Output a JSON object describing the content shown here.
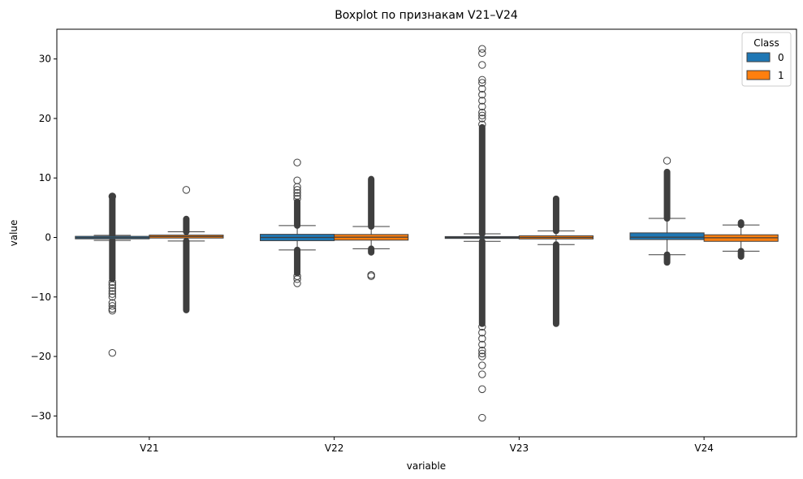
{
  "chart_data": {
    "type": "box",
    "title": "Boxplot по признакам V21–V24",
    "xlabel": "variable",
    "ylabel": "value",
    "ylim": [
      -33.5,
      35
    ],
    "yticks": [
      -30,
      -20,
      -10,
      0,
      10,
      20,
      30
    ],
    "yticklabels": [
      "−30",
      "−20",
      "−10",
      "0",
      "10",
      "20",
      "30"
    ],
    "categories": [
      "V21",
      "V22",
      "V23",
      "V24"
    ],
    "legend": {
      "title": "Class",
      "position": "top-right"
    },
    "grid": false,
    "series": [
      {
        "name": "0",
        "color": "#1f77b4",
        "boxes": [
          {
            "q1": -0.23,
            "median": -0.03,
            "q3": 0.19,
            "whisker_low": -0.5,
            "whisker_high": 0.35,
            "outliers_dense": [
              [
                -7.0,
                -0.5
              ],
              [
                0.35,
                6.9
              ]
            ],
            "outliers": [
              -7.5,
              -8,
              -8.5,
              -9,
              -9.5,
              -10,
              -11,
              -11.5,
              -12,
              -12.3,
              -19.4,
              6.9
            ]
          },
          {
            "q1": -0.54,
            "median": 0.0,
            "q3": 0.53,
            "whisker_low": -2.1,
            "whisker_high": 2.0,
            "outliers_dense": [
              [
                -6.0,
                -2.1
              ],
              [
                2.0,
                6.0
              ]
            ],
            "outliers": [
              -6.5,
              -7.0,
              -7.7,
              6.5,
              7.0,
              7.5,
              8.0,
              8.5,
              9.6,
              12.6
            ]
          },
          {
            "q1": -0.16,
            "median": -0.01,
            "q3": 0.15,
            "whisker_low": -0.65,
            "whisker_high": 0.62,
            "outliers_dense": [
              [
                -14.5,
                -0.65
              ],
              [
                0.62,
                18.5
              ]
            ],
            "outliers": [
              -15,
              -16,
              -17,
              -18,
              -19,
              -19.5,
              -20,
              -21.5,
              -23,
              -25.5,
              -30.3,
              19,
              20,
              20.5,
              21,
              22,
              23,
              24,
              25,
              26,
              26.5,
              29,
              31,
              31.7
            ]
          },
          {
            "q1": -0.35,
            "median": 0.04,
            "q3": 0.77,
            "whisker_low": -2.9,
            "whisker_high": 3.2,
            "outliers_dense": [
              [
                -4.2,
                -2.9
              ],
              [
                3.2,
                11.0
              ]
            ],
            "outliers": [
              12.9
            ]
          }
        ]
      },
      {
        "name": "1",
        "color": "#ff7f0e",
        "boxes": [
          {
            "q1": -0.1,
            "median": 0.15,
            "q3": 0.4,
            "whisker_low": -0.6,
            "whisker_high": 0.95,
            "outliers_dense": [
              [
                -12.2,
                -0.6
              ],
              [
                0.95,
                3.1
              ]
            ],
            "outliers": [
              8.0
            ]
          },
          {
            "q1": -0.45,
            "median": 0.05,
            "q3": 0.5,
            "whisker_low": -1.9,
            "whisker_high": 1.85,
            "outliers_dense": [
              [
                -2.5,
                -1.9
              ],
              [
                1.85,
                9.8
              ]
            ],
            "outliers": [
              -6.3,
              -6.5
            ]
          },
          {
            "q1": -0.25,
            "median": 0.0,
            "q3": 0.28,
            "whisker_low": -1.2,
            "whisker_high": 1.1,
            "outliers_dense": [
              [
                -14.5,
                -1.2
              ],
              [
                1.1,
                6.5
              ]
            ],
            "outliers": []
          },
          {
            "q1": -0.65,
            "median": -0.05,
            "q3": 0.45,
            "whisker_low": -2.3,
            "whisker_high": 2.1,
            "outliers_dense": [
              [
                -3.2,
                -2.3
              ],
              [
                2.1,
                2.5
              ]
            ],
            "outliers": []
          }
        ]
      }
    ]
  }
}
